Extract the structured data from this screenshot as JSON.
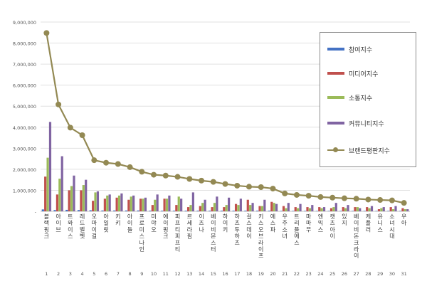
{
  "chart_data": {
    "type": "bar",
    "ylim": [
      0,
      9000000
    ],
    "yticks": [
      "9,000,000",
      "8,000,000",
      "7,000,000",
      "6,000,000",
      "5,000,000",
      "4,000,000",
      "3,000,000",
      "2,000,000",
      "1,000,000",
      "-"
    ],
    "categories": [
      "블랙핑크",
      "아이브",
      "트와이스",
      "레드벨벳",
      "오마이걸",
      "아일릿",
      "키키",
      "아이들",
      "프로미스나인",
      "미야오",
      "에이핑크",
      "피프티피프티",
      "르세라핌",
      "이즈나",
      "베이비몬스터",
      "하이키",
      "하츠투하츠",
      "걸스데이",
      "키스오브라이프",
      "에스파",
      "우주소녀",
      "트리플에스",
      "마마무",
      "엔믹스",
      "캣츠아이",
      "있지",
      "베이비돈크라이",
      "케플러",
      "유니스",
      "소녀시대",
      "우아"
    ],
    "ranks": [
      "1",
      "2",
      "3",
      "4",
      "5",
      "6",
      "7",
      "8",
      "9",
      "10",
      "11",
      "12",
      "13",
      "14",
      "15",
      "16",
      "17",
      "18",
      "19",
      "20",
      "21",
      "22",
      "23",
      "24",
      "25",
      "26",
      "27",
      "28",
      "29",
      "30",
      "31"
    ],
    "series": [
      {
        "name": "참여지수",
        "color": "#4472c4",
        "values": [
          90000,
          60000,
          70000,
          60000,
          50000,
          40000,
          40000,
          40000,
          40000,
          30000,
          30000,
          30000,
          30000,
          30000,
          30000,
          30000,
          30000,
          30000,
          30000,
          30000,
          20000,
          20000,
          20000,
          20000,
          20000,
          20000,
          20000,
          20000,
          20000,
          20000,
          20000
        ]
      },
      {
        "name": "미디어지수",
        "color": "#c0504d",
        "values": [
          1650000,
          800000,
          1000000,
          1000000,
          500000,
          600000,
          650000,
          550000,
          600000,
          300000,
          600000,
          300000,
          200000,
          250000,
          200000,
          200000,
          350000,
          550000,
          250000,
          450000,
          250000,
          200000,
          200000,
          200000,
          150000,
          200000,
          200000,
          200000,
          100000,
          200000,
          150000
        ]
      },
      {
        "name": "소통지수",
        "color": "#9bbb59",
        "values": [
          2550000,
          1550000,
          1200000,
          1250000,
          900000,
          750000,
          750000,
          700000,
          600000,
          550000,
          600000,
          700000,
          300000,
          400000,
          400000,
          300000,
          300000,
          300000,
          250000,
          400000,
          150000,
          150000,
          150000,
          150000,
          200000,
          150000,
          200000,
          150000,
          150000,
          100000,
          100000
        ]
      },
      {
        "name": "커뮤니티지수",
        "color": "#8064a2",
        "values": [
          4250000,
          2620000,
          1700000,
          1500000,
          950000,
          800000,
          850000,
          750000,
          650000,
          800000,
          750000,
          600000,
          900000,
          550000,
          700000,
          650000,
          600000,
          400000,
          550000,
          350000,
          400000,
          350000,
          300000,
          200000,
          400000,
          300000,
          150000,
          250000,
          200000,
          250000,
          100000
        ]
      }
    ],
    "line": {
      "name": "브랜드평판지수",
      "color": "#938953",
      "values": [
        8480000,
        5080000,
        3980000,
        3620000,
        2430000,
        2310000,
        2250000,
        2100000,
        1880000,
        1740000,
        1700000,
        1640000,
        1540000,
        1460000,
        1400000,
        1300000,
        1220000,
        1170000,
        1150000,
        1080000,
        850000,
        780000,
        740000,
        680000,
        650000,
        620000,
        600000,
        560000,
        540000,
        520000,
        400000
      ]
    }
  }
}
